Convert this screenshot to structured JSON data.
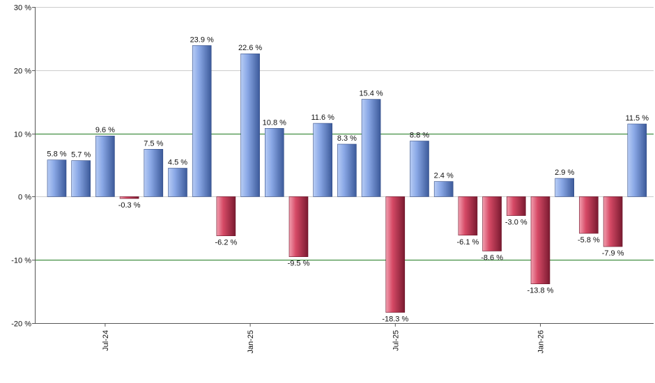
{
  "chart_data": {
    "type": "bar",
    "title": "",
    "xlabel": "",
    "ylabel": "",
    "ylim": [
      -20,
      30
    ],
    "y_ticks": [
      30,
      20,
      10,
      0,
      -10,
      -20
    ],
    "y_tick_labels": [
      "30 %",
      "20 %",
      "10 %",
      "0 %",
      "-10 %",
      "-20 %"
    ],
    "x_tick_labels": [
      {
        "label": "Jul-24",
        "index": 2
      },
      {
        "label": "Jan-25",
        "index": 8
      },
      {
        "label": "Jul-25",
        "index": 14
      },
      {
        "label": "Jan-26",
        "index": 20
      }
    ],
    "values": [
      5.8,
      5.7,
      9.6,
      -0.3,
      7.5,
      4.5,
      23.9,
      -6.2,
      22.6,
      10.8,
      -9.5,
      11.6,
      8.3,
      15.4,
      -18.3,
      8.8,
      2.4,
      -6.1,
      -8.6,
      -3.0,
      -13.8,
      2.9,
      -5.8,
      -7.9,
      11.5
    ],
    "value_labels": [
      "5.8 %",
      "5.7 %",
      "9.6 %",
      "-0.3 %",
      "7.5 %",
      "4.5 %",
      "23.9 %",
      "-6.2 %",
      "22.6 %",
      "10.8 %",
      "-9.5 %",
      "11.6 %",
      "8.3 %",
      "15.4 %",
      "-18.3 %",
      "8.8 %",
      "2.4 %",
      "-6.1 %",
      "-8.6 %",
      "-3.0 %",
      "-13.8 %",
      "2.9 %",
      "-5.8 %",
      "-7.9 %",
      "11.5 %"
    ],
    "grid": true,
    "highlight_gridlines": [
      10,
      -10
    ],
    "colors": {
      "positive_light": "#b8cdf5",
      "positive_mid": "#7f9fe0",
      "positive_dark": "#3c5a9a",
      "negative_light": "#f2a0b0",
      "negative_mid": "#d2405e",
      "negative_dark": "#7a1a30",
      "grid": "#cccccc",
      "highlight_grid": "#1e7a1e",
      "axis": "#555555"
    }
  }
}
